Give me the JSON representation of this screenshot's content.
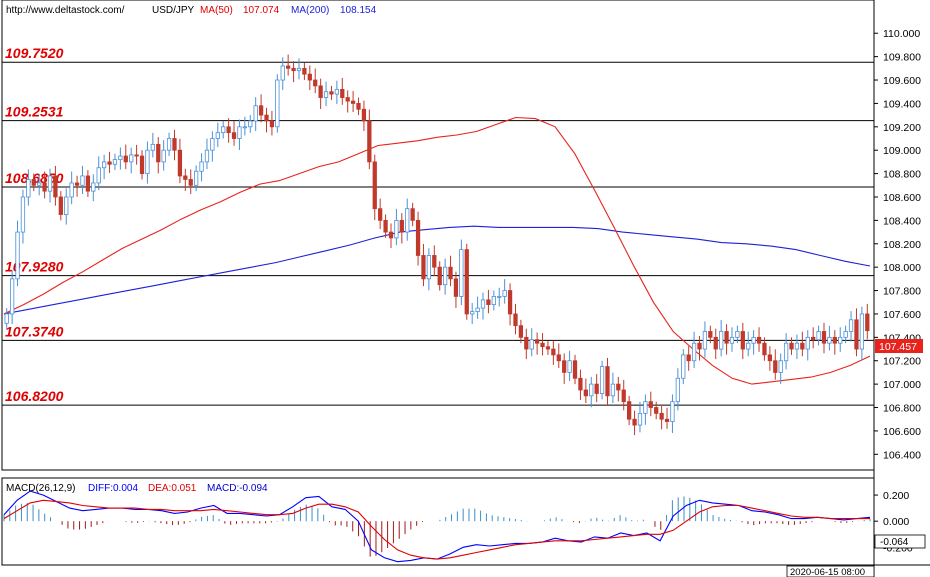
{
  "header": {
    "url": "http://www.deltastock.com/",
    "symbol": "USD/JPY",
    "ma50_label": "MA(50)",
    "ma50_value": "107.074",
    "ma200_label": "MA(200)",
    "ma200_value": "108.154"
  },
  "macd_header": {
    "name": "MACD(26,12,9)",
    "diff": "DIFF:0.004",
    "dea": "DEA:0.051",
    "macd": "MACD:-0.094"
  },
  "colors": {
    "up": "#4a90d9",
    "down": "#c0392b",
    "ma50": "#e8231c",
    "ma200": "#1c22d8",
    "level_text": "#e00000",
    "diff": "#0000ff",
    "dea": "#e00000",
    "current_box": "#e8231c"
  },
  "chart_data": {
    "type": "candlestick",
    "pair": "USD/JPY",
    "last_price_tag": "107.457",
    "timestamp": "2020-06-15 08:00",
    "ylim": [
      106.3,
      110.25
    ],
    "y_ticks": [
      "106.400",
      "106.600",
      "106.800",
      "107.000",
      "107.200",
      "107.400",
      "107.600",
      "107.800",
      "108.000",
      "108.200",
      "108.400",
      "108.600",
      "108.800",
      "109.000",
      "109.200",
      "109.400",
      "109.600",
      "109.800",
      "110.000"
    ],
    "levels": [
      "109.7520",
      "109.2531",
      "108.6850",
      "107.9280",
      "107.3740",
      "106.8200"
    ],
    "closes": [
      107.6,
      107.9,
      108.3,
      108.6,
      108.75,
      108.7,
      108.72,
      108.65,
      108.78,
      108.6,
      108.45,
      108.6,
      108.72,
      108.7,
      108.78,
      108.65,
      108.72,
      108.85,
      108.9,
      108.88,
      108.92,
      108.95,
      108.9,
      108.96,
      108.95,
      108.8,
      109.0,
      109.05,
      108.9,
      109.0,
      109.1,
      109.0,
      108.78,
      108.75,
      108.7,
      108.82,
      108.9,
      109.0,
      109.1,
      109.15,
      109.2,
      109.15,
      109.1,
      109.2,
      109.2,
      109.25,
      109.38,
      109.3,
      109.25,
      109.2,
      109.6,
      109.72,
      109.7,
      109.68,
      109.7,
      109.65,
      109.6,
      109.55,
      109.45,
      109.5,
      109.48,
      109.52,
      109.45,
      109.42,
      109.4,
      109.35,
      109.25,
      108.9,
      108.5,
      108.4,
      108.3,
      108.25,
      108.4,
      108.3,
      108.5,
      108.4,
      108.1,
      107.9,
      108.1,
      108.0,
      107.85,
      108.0,
      107.9,
      107.75,
      108.15,
      107.6,
      107.62,
      107.65,
      107.72,
      107.68,
      107.75,
      107.75,
      107.8,
      107.6,
      107.5,
      107.4,
      107.3,
      107.38,
      107.35,
      107.32,
      107.3,
      107.25,
      107.2,
      107.1,
      107.2,
      107.05,
      106.95,
      106.9,
      107.0,
      106.92,
      107.15,
      106.9,
      107.0,
      106.95,
      106.85,
      106.7,
      106.65,
      106.75,
      106.85,
      106.8,
      106.75,
      106.7,
      106.68,
      106.85,
      107.05,
      107.25,
      107.2,
      107.35,
      107.3,
      107.45,
      107.4,
      107.3,
      107.45,
      107.35,
      107.4,
      107.45,
      107.3,
      107.35,
      107.4,
      107.35,
      107.25,
      107.2,
      107.1,
      107.2,
      107.35,
      107.3,
      107.35,
      107.3,
      107.4,
      107.38,
      107.45,
      107.35,
      107.4,
      107.35,
      107.4,
      107.45,
      107.55,
      107.3,
      107.6,
      107.457
    ],
    "ma50": [
      107.6,
      107.68,
      107.77,
      107.87,
      107.96,
      108.06,
      108.16,
      108.24,
      108.32,
      108.41,
      108.49,
      108.56,
      108.64,
      108.71,
      108.74,
      108.8,
      108.86,
      108.9,
      108.97,
      109.04,
      109.06,
      109.08,
      109.11,
      109.13,
      109.16,
      109.22,
      109.28,
      109.27,
      109.2,
      108.97,
      108.66,
      108.34,
      108.01,
      107.7,
      107.45,
      107.3,
      107.16,
      107.05,
      107.0,
      107.02,
      107.04,
      107.06,
      107.1,
      107.16,
      107.24
    ],
    "ma200": [
      107.6,
      107.64,
      107.68,
      107.72,
      107.76,
      107.8,
      107.84,
      107.88,
      107.92,
      107.96,
      108.0,
      108.04,
      108.09,
      108.14,
      108.19,
      108.25,
      108.3,
      108.32,
      108.34,
      108.35,
      108.34,
      108.34,
      108.34,
      108.34,
      108.33,
      108.3,
      108.28,
      108.26,
      108.24,
      108.21,
      108.2,
      108.18,
      108.15,
      108.1,
      108.05,
      108.01
    ],
    "macd": {
      "ylim": [
        -0.32,
        0.3
      ],
      "y_ticks": [
        "0.200",
        "0.000",
        "-0.200"
      ],
      "current_tag": "-0.064",
      "diff": [
        0.05,
        0.16,
        0.23,
        0.2,
        0.15,
        0.1,
        0.08,
        0.09,
        0.1,
        0.1,
        0.09,
        0.09,
        0.08,
        0.06,
        0.07,
        0.1,
        0.12,
        0.06,
        0.06,
        0.05,
        0.04,
        0.05,
        0.11,
        0.18,
        0.19,
        0.11,
        0.09,
        0.0,
        -0.22,
        -0.28,
        -0.31,
        -0.3,
        -0.28,
        -0.29,
        -0.25,
        -0.2,
        -0.18,
        -0.19,
        -0.18,
        -0.17,
        -0.17,
        -0.16,
        -0.13,
        -0.15,
        -0.16,
        -0.12,
        -0.13,
        -0.09,
        -0.11,
        -0.09,
        -0.15,
        0.04,
        0.12,
        0.16,
        0.14,
        0.13,
        0.12,
        0.08,
        0.07,
        0.05,
        0.02,
        0.02,
        0.03,
        0.02,
        0.01,
        0.02,
        0.03
      ],
      "dea": [
        0.02,
        0.08,
        0.14,
        0.16,
        0.15,
        0.14,
        0.12,
        0.11,
        0.1,
        0.1,
        0.1,
        0.09,
        0.09,
        0.08,
        0.08,
        0.08,
        0.09,
        0.08,
        0.07,
        0.06,
        0.05,
        0.05,
        0.06,
        0.1,
        0.13,
        0.13,
        0.11,
        0.07,
        -0.04,
        -0.14,
        -0.22,
        -0.26,
        -0.28,
        -0.29,
        -0.28,
        -0.26,
        -0.24,
        -0.22,
        -0.2,
        -0.18,
        -0.17,
        -0.16,
        -0.15,
        -0.15,
        -0.15,
        -0.14,
        -0.13,
        -0.12,
        -0.11,
        -0.1,
        -0.1,
        -0.07,
        0.0,
        0.07,
        0.11,
        0.12,
        0.12,
        0.1,
        0.08,
        0.06,
        0.04,
        0.03,
        0.03,
        0.02,
        0.02,
        0.02,
        0.02
      ]
    }
  }
}
